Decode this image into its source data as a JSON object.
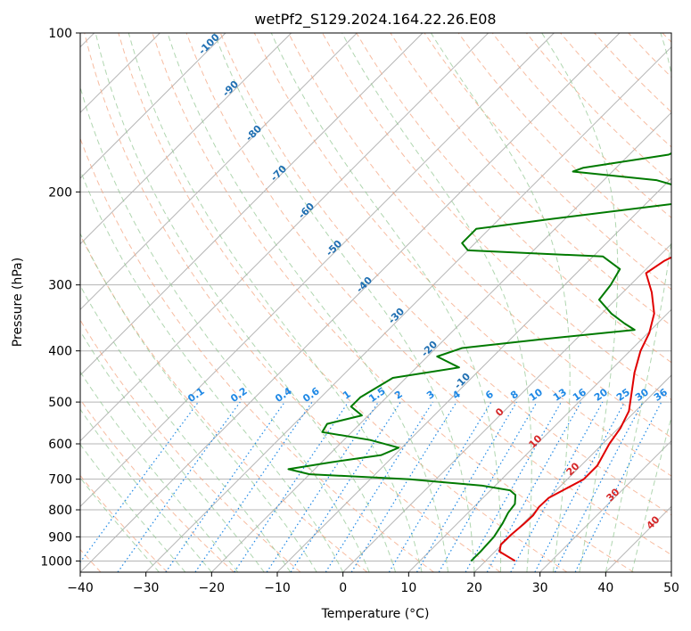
{
  "chart_data": {
    "type": "skew-t log-p",
    "title": "wetPf2_S129.2024.164.22.26.E08",
    "xlabel": "Temperature (°C)",
    "ylabel": "Pressure (hPa)",
    "xlim": [
      -40,
      50
    ],
    "ylim": [
      1050,
      100
    ],
    "x_ticks": [
      "−40",
      "−30",
      "−20",
      "−10",
      "0",
      "10",
      "20",
      "30",
      "40",
      "50"
    ],
    "x_tick_values": [
      -40,
      -30,
      -20,
      -10,
      0,
      10,
      20,
      30,
      40,
      50
    ],
    "y_ticks": [
      "100",
      "200",
      "300",
      "400",
      "500",
      "600",
      "700",
      "800",
      "900",
      "1000"
    ],
    "y_tick_values": [
      100,
      200,
      300,
      400,
      500,
      600,
      700,
      800,
      900,
      1000
    ],
    "grid": true,
    "dry_adiabat_labels": [
      "-100",
      "-90",
      "-80",
      "-70",
      "-60",
      "-50",
      "-40",
      "-30",
      "-20",
      "-10"
    ],
    "moist_adiabat_labels": [
      "0",
      "10",
      "20",
      "30",
      "40"
    ],
    "mixing_ratio_labels": [
      "0.1",
      "0.2",
      "0.4",
      "0.6",
      "1",
      "1.5",
      "2",
      "3",
      "4",
      "6",
      "8",
      "10",
      "13",
      "16",
      "20",
      "25",
      "30",
      "36"
    ],
    "series": [
      {
        "color": "#e00000",
        "points": [
          [
            1000,
            24.5
          ],
          [
            960,
            20.7
          ],
          [
            930,
            19.8
          ],
          [
            890,
            19.9
          ],
          [
            850,
            20.2
          ],
          [
            820,
            20.3
          ],
          [
            790,
            19.9
          ],
          [
            760,
            20.0
          ],
          [
            730,
            21.2
          ],
          [
            700,
            22.5
          ],
          [
            660,
            22.5
          ],
          [
            600,
            21.0
          ],
          [
            560,
            20.3
          ],
          [
            520,
            19.0
          ],
          [
            480,
            16.6
          ],
          [
            440,
            14.0
          ],
          [
            400,
            11.6
          ],
          [
            370,
            10.2
          ],
          [
            340,
            8.0
          ],
          [
            310,
            4.4
          ],
          [
            285,
            0.6
          ],
          [
            270,
            1.5
          ],
          [
            255,
            3.6
          ],
          [
            240,
            7.2
          ],
          [
            220,
            9.1
          ],
          [
            205,
            11.1
          ],
          [
            190,
            13.0
          ],
          [
            175,
            13.5
          ],
          [
            160,
            11.8
          ],
          [
            145,
            10.2
          ],
          [
            125,
            8.0
          ],
          [
            115,
            6.5
          ],
          [
            108,
            6.4
          ],
          [
            100,
            8.2
          ]
        ]
      },
      {
        "color": "#007a00",
        "points": [
          [
            1000,
            17.8
          ],
          [
            960,
            17.8
          ],
          [
            900,
            17.6
          ],
          [
            850,
            16.9
          ],
          [
            810,
            16.1
          ],
          [
            780,
            15.8
          ],
          [
            750,
            14.5
          ],
          [
            735,
            13.0
          ],
          [
            720,
            8.0
          ],
          [
            700,
            -4.0
          ],
          [
            685,
            -20.0
          ],
          [
            670,
            -24.0
          ],
          [
            650,
            -18.5
          ],
          [
            630,
            -12.0
          ],
          [
            610,
            -10.5
          ],
          [
            590,
            -16.0
          ],
          [
            570,
            -24.5
          ],
          [
            550,
            -25.0
          ],
          [
            530,
            -21.0
          ],
          [
            510,
            -24.0
          ],
          [
            490,
            -24.0
          ],
          [
            450,
            -22.0
          ],
          [
            430,
            -13.5
          ],
          [
            410,
            -18.5
          ],
          [
            395,
            -16.0
          ],
          [
            380,
            -5.0
          ],
          [
            365,
            7.5
          ],
          [
            355,
            5.0
          ],
          [
            340,
            1.5
          ],
          [
            320,
            -2.5
          ],
          [
            300,
            -3.0
          ],
          [
            280,
            -4.0
          ],
          [
            265,
            -8.5
          ],
          [
            258,
            -30.0
          ],
          [
            250,
            -32.0
          ],
          [
            235,
            -32.0
          ],
          [
            225,
            -22.0
          ],
          [
            210,
            -5.0
          ],
          [
            200,
            -4.0
          ],
          [
            190,
            -12.0
          ],
          [
            183,
            -26.0
          ],
          [
            180,
            -25.0
          ],
          [
            170,
            -14.0
          ],
          [
            160,
            -12.0
          ],
          [
            145,
            -12.5
          ],
          [
            130,
            -8.0
          ],
          [
            115,
            -1.5
          ],
          [
            100,
            2.5
          ]
        ]
      }
    ]
  }
}
